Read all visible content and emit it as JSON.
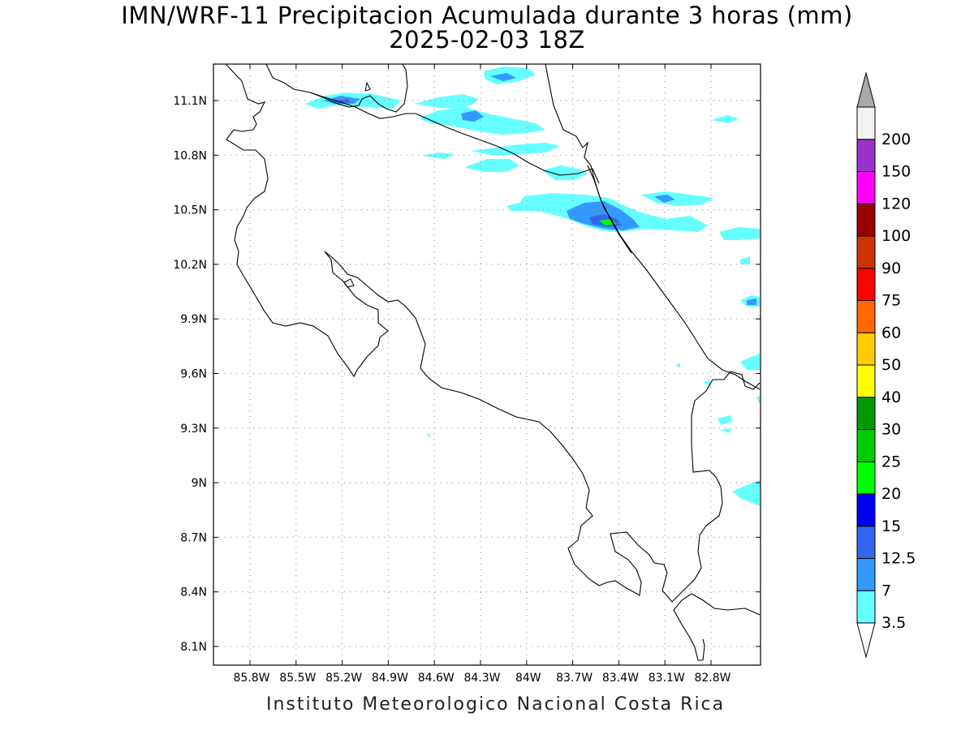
{
  "title_line1": "IMN/WRF-11 Precipitacion Acumulada durante 3 horas (mm)",
  "title_line2": "2025-02-03 18Z",
  "footer": "Instituto Meteorologico Nacional Costa Rica",
  "lat_labels": [
    "11.1N",
    "10.8N",
    "10.5N",
    "10.2N",
    "9.9N",
    "9.6N",
    "9.3N",
    "9N",
    "8.7N",
    "8.4N",
    "8.1N"
  ],
  "lon_labels": [
    "85.8W",
    "85.5W",
    "85.2W",
    "84.9W",
    "84.6W",
    "84.3W",
    "84W",
    "83.7W",
    "83.4W",
    "83.1W",
    "82.8W"
  ],
  "colorbar": {
    "levels": [
      "3.5",
      "7",
      "12.5",
      "15",
      "20",
      "25",
      "30",
      "40",
      "50",
      "60",
      "75",
      "90",
      "100",
      "120",
      "150",
      "200"
    ],
    "colors": [
      "#66ffff",
      "#3399ff",
      "#3366ee",
      "#0000ff",
      "#00ff00",
      "#00cc00",
      "#009900",
      "#ffff00",
      "#ffcc00",
      "#ff6600",
      "#ff0000",
      "#cc3300",
      "#990000",
      "#ff00ff",
      "#9933cc",
      "#f2f2f2"
    ],
    "top_triangle_color": "#aaaaaa",
    "bottom_triangle_color": "#ffffff"
  },
  "precip_colors": {
    "light": "#66ffff",
    "medium": "#3399ff",
    "heavy": "#3366ee",
    "peak": "#00ff00"
  }
}
